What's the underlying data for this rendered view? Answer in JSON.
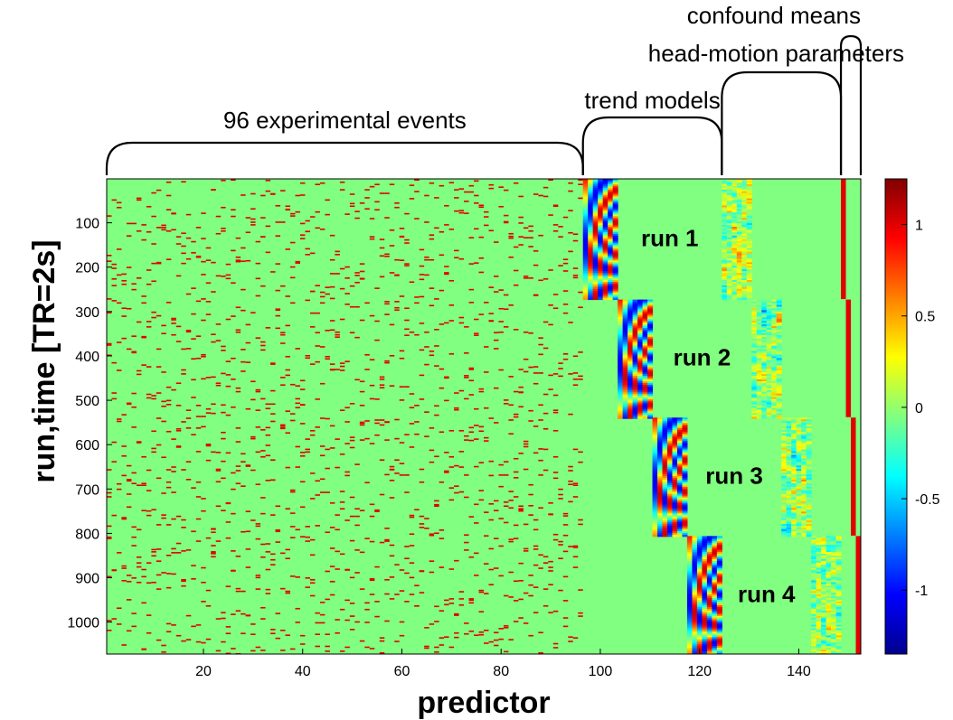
{
  "chart_data": {
    "type": "heatmap",
    "xlabel": "predictor",
    "ylabel": "run,time [TR=2s]",
    "xlim": [
      0.5,
      152.5
    ],
    "ylim": [
      1,
      1072
    ],
    "x_ticks": [
      "20",
      "40",
      "60",
      "80",
      "100",
      "120",
      "140"
    ],
    "y_ticks": [
      "100",
      "200",
      "300",
      "400",
      "500",
      "600",
      "700",
      "800",
      "900",
      "1000"
    ],
    "colorbar": {
      "ticks": [
        "1",
        "0.5",
        "0",
        "-0.5",
        "-1"
      ],
      "range": [
        -1.35,
        1.25
      ],
      "colormap": "jet"
    },
    "background_value": 0,
    "runs": [
      {
        "label": "run 1",
        "row_range": [
          1,
          272
        ],
        "trend_cols": [
          97,
          103
        ],
        "motion_cols": [
          125,
          130
        ],
        "mean_col": 149
      },
      {
        "label": "run 2",
        "row_range": [
          273,
          538
        ],
        "trend_cols": [
          104,
          110
        ],
        "motion_cols": [
          131,
          136
        ],
        "mean_col": 150
      },
      {
        "label": "run 3",
        "row_range": [
          539,
          805
        ],
        "trend_cols": [
          111,
          117
        ],
        "motion_cols": [
          137,
          142
        ],
        "mean_col": 151
      },
      {
        "label": "run 4",
        "row_range": [
          806,
          1072
        ],
        "trend_cols": [
          118,
          124
        ],
        "motion_cols": [
          143,
          148
        ],
        "mean_col": 152
      }
    ],
    "event_block": {
      "cols": [
        1,
        96
      ],
      "event_value": 1
    },
    "brackets": [
      {
        "label": "96 experimental events",
        "cols": [
          1,
          96
        ]
      },
      {
        "label": "trend models",
        "cols": [
          97,
          124
        ]
      },
      {
        "label": "head-motion parameters",
        "cols": [
          125,
          148
        ]
      },
      {
        "label": "confound means",
        "cols": [
          149,
          152
        ]
      }
    ]
  }
}
